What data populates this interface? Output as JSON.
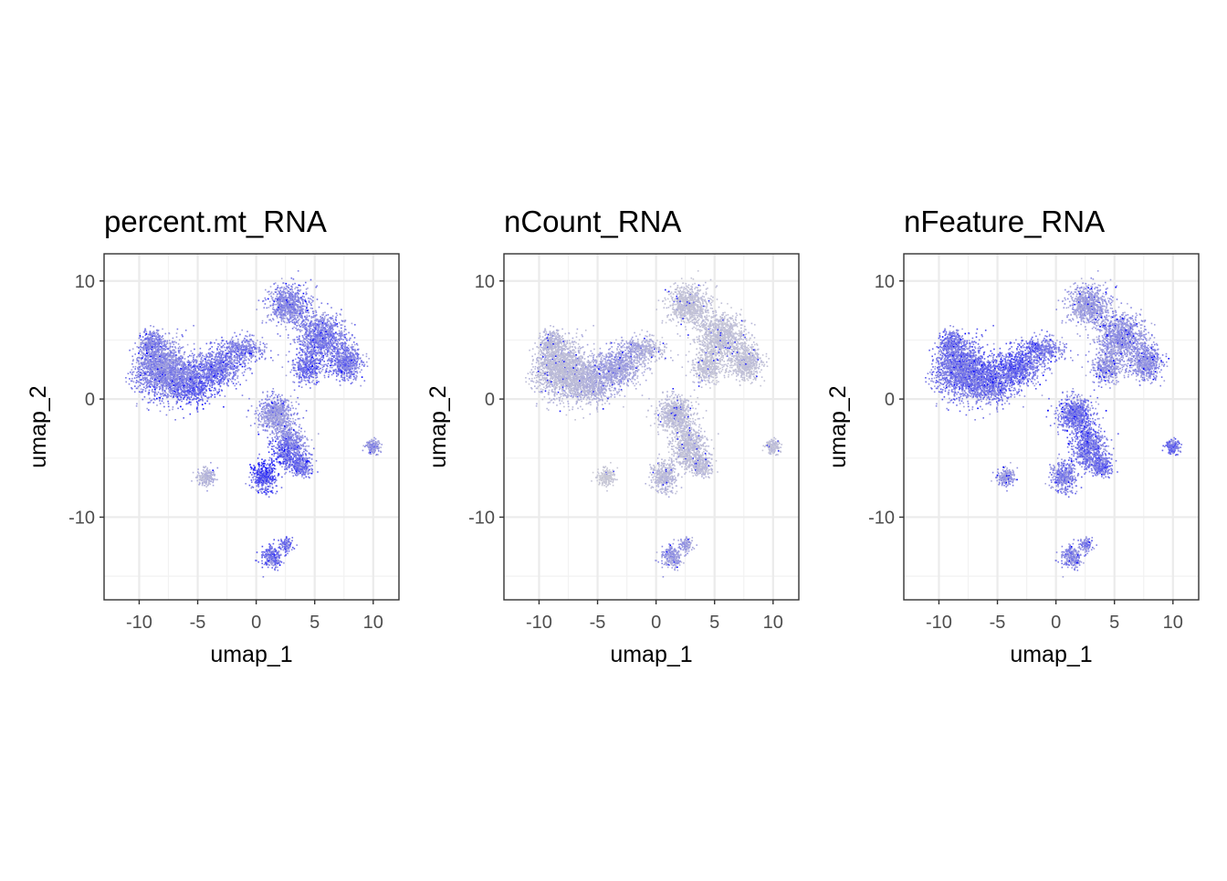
{
  "chart_data": [
    {
      "type": "scatter",
      "title": "percent.mt_RNA",
      "xlabel": "umap_1",
      "ylabel": "umap_2",
      "xlim": [
        -13,
        12.2
      ],
      "ylim": [
        -17,
        12.3
      ],
      "xticks": [
        -10,
        -5,
        0,
        5,
        10
      ],
      "yticks": [
        10,
        0,
        -10
      ],
      "xtick_labels": [
        "-10",
        "-5",
        "0",
        "5",
        "10"
      ],
      "ytick_labels": [
        "10",
        "0",
        "-10"
      ],
      "grid": true,
      "colors": {
        "low": "#d3d3d3",
        "high": "#0000ff"
      },
      "feature": "mt",
      "series": [
        {
          "values": [
            {
              "x": -7.5,
              "y": 3.0,
              "level": 0.35
            },
            {
              "x": -4.0,
              "y": -1.0,
              "level": 0.7
            },
            {
              "x": 2.0,
              "y": 7.5,
              "level": 0.35
            },
            {
              "x": 5.0,
              "y": 2.0,
              "level": 0.5
            },
            {
              "x": 1.5,
              "y": -2.0,
              "level": 0.2
            },
            {
              "x": 0.5,
              "y": -5.0,
              "level": 0.8
            },
            {
              "x": 1.5,
              "y": -13.0,
              "level": 0.5
            },
            {
              "x": -4.5,
              "y": -6.5,
              "level": 0.1
            },
            {
              "x": 10.0,
              "y": -4.0,
              "level": 0.3
            }
          ]
        }
      ]
    },
    {
      "type": "scatter",
      "title": "nCount_RNA",
      "xlabel": "umap_1",
      "ylabel": "umap_2",
      "xlim": [
        -13,
        12.2
      ],
      "ylim": [
        -17,
        12.3
      ],
      "xticks": [
        -10,
        -5,
        0,
        5,
        10
      ],
      "yticks": [
        10,
        0,
        -10
      ],
      "xtick_labels": [
        "-10",
        "-5",
        "0",
        "5",
        "10"
      ],
      "ytick_labels": [
        "10",
        "0",
        "-10"
      ],
      "grid": true,
      "colors": {
        "low": "#d3d3d3",
        "high": "#0000ff"
      },
      "feature": "count",
      "series": [
        {
          "values": [
            {
              "x": -7.5,
              "y": 3.0,
              "level": 0.1
            },
            {
              "x": -4.0,
              "y": 3.5,
              "level": 0.3
            },
            {
              "x": 2.0,
              "y": 7.5,
              "level": 0.08
            },
            {
              "x": 5.0,
              "y": 3.0,
              "level": 0.08
            },
            {
              "x": 1.5,
              "y": -3.0,
              "level": 0.1
            },
            {
              "x": 0.5,
              "y": -12.5,
              "level": 0.3
            },
            {
              "x": -4.5,
              "y": -6.5,
              "level": 0.05
            },
            {
              "x": 10.0,
              "y": -4.0,
              "level": 0.1
            }
          ]
        }
      ]
    },
    {
      "type": "scatter",
      "title": "nFeature_RNA",
      "xlabel": "umap_1",
      "ylabel": "umap_2",
      "xlim": [
        -13,
        12.2
      ],
      "ylim": [
        -17,
        12.3
      ],
      "xticks": [
        -10,
        -5,
        0,
        5,
        10
      ],
      "yticks": [
        10,
        0,
        -10
      ],
      "xtick_labels": [
        "-10",
        "-5",
        "0",
        "5",
        "10"
      ],
      "ytick_labels": [
        "10",
        "0",
        "-10"
      ],
      "grid": true,
      "colors": {
        "low": "#d3d3d3",
        "high": "#0000ff"
      },
      "feature": "feature",
      "series": [
        {
          "values": [
            {
              "x": -8.5,
              "y": 2.0,
              "level": 0.45
            },
            {
              "x": -4.0,
              "y": 4.0,
              "level": 0.6
            },
            {
              "x": 2.0,
              "y": 7.5,
              "level": 0.25
            },
            {
              "x": 5.0,
              "y": 3.0,
              "level": 0.3
            },
            {
              "x": 2.5,
              "y": -3.0,
              "level": 0.5
            },
            {
              "x": 1.0,
              "y": -12.5,
              "level": 0.4
            },
            {
              "x": -4.5,
              "y": -6.0,
              "level": 0.3
            },
            {
              "x": 10.0,
              "y": -4.0,
              "level": 0.5
            }
          ]
        }
      ]
    }
  ]
}
